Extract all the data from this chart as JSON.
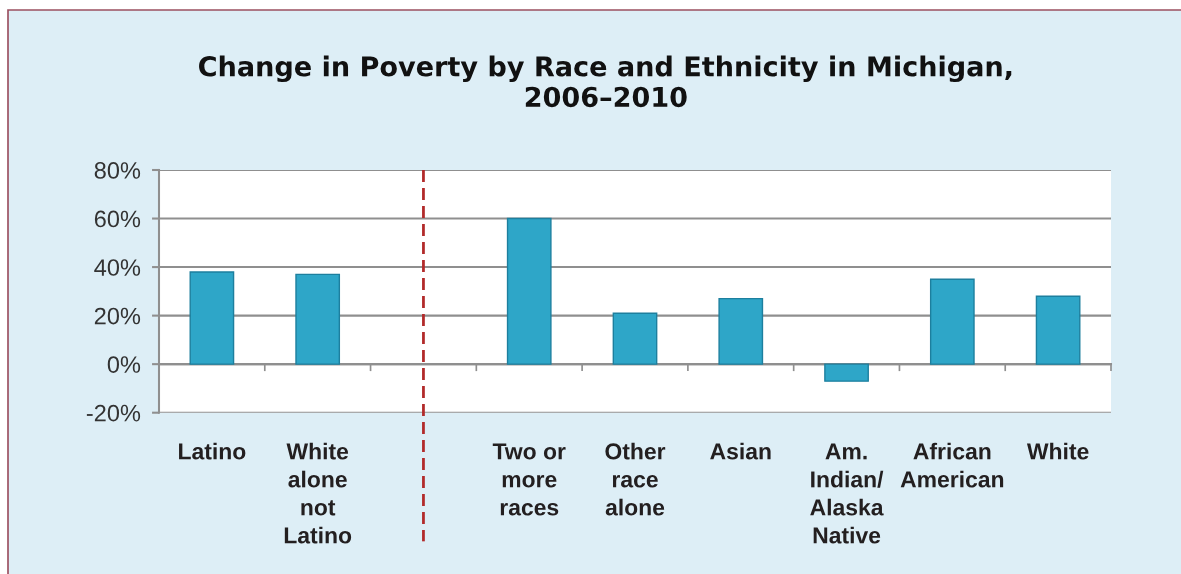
{
  "chart_data": {
    "type": "bar",
    "title": "Change in Poverty by Race and Ethnicity in Michigan,\n2006–2010",
    "categories": [
      "Latino",
      "White\nalone\nnot\nLatino",
      null,
      "Two or\nmore\nraces",
      "Other\nrace\nalone",
      "Asian",
      "Am.\nIndian/\nAlaska\nNative",
      "African\nAmerican",
      "White"
    ],
    "values": [
      38,
      37,
      null,
      60,
      21,
      27,
      -7,
      35,
      28
    ],
    "color": "#2ea6c8",
    "ylim": [
      -20,
      80
    ],
    "yticks": [
      {
        "value": -20,
        "label": "-20%"
      },
      {
        "value": 0,
        "label": "0%"
      },
      {
        "value": 20,
        "label": "20%"
      },
      {
        "value": 40,
        "label": "40%"
      },
      {
        "value": 60,
        "label": "60%"
      },
      {
        "value": 80,
        "label": "80%"
      }
    ],
    "grid": "y"
  }
}
